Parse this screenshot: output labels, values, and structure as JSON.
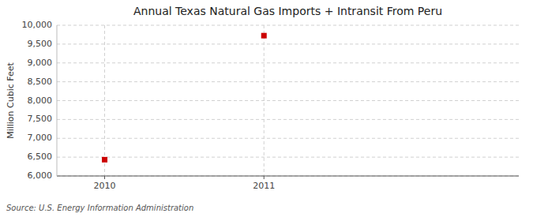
{
  "chart_data": {
    "type": "scatter",
    "title": "Annual Texas Natural Gas Imports + Intransit From Peru",
    "y_label": "Million Cubic Feet",
    "annotations": [
      "Source: U.S. Energy Information Administration"
    ],
    "x": [
      2010,
      2011
    ],
    "values": [
      6432,
      9724
    ],
    "color": "#cc0000",
    "marker": "square",
    "xlim": [
      2009.7,
      2012.6
    ],
    "xticks": [
      2010,
      2011
    ],
    "ylim": [
      6000,
      10000
    ],
    "yticks": [
      {
        "value": 6000,
        "label": "6,000"
      },
      {
        "value": 6500,
        "label": "6,500"
      },
      {
        "value": 7000,
        "label": "7,000"
      },
      {
        "value": 7500,
        "label": "7,500"
      },
      {
        "value": 8000,
        "label": "8,000"
      },
      {
        "value": 8500,
        "label": "8,500"
      },
      {
        "value": 9000,
        "label": "9,000"
      },
      {
        "value": 9500,
        "label": "9,500"
      },
      {
        "value": 10000,
        "label": "10,000"
      }
    ],
    "grid": true
  }
}
